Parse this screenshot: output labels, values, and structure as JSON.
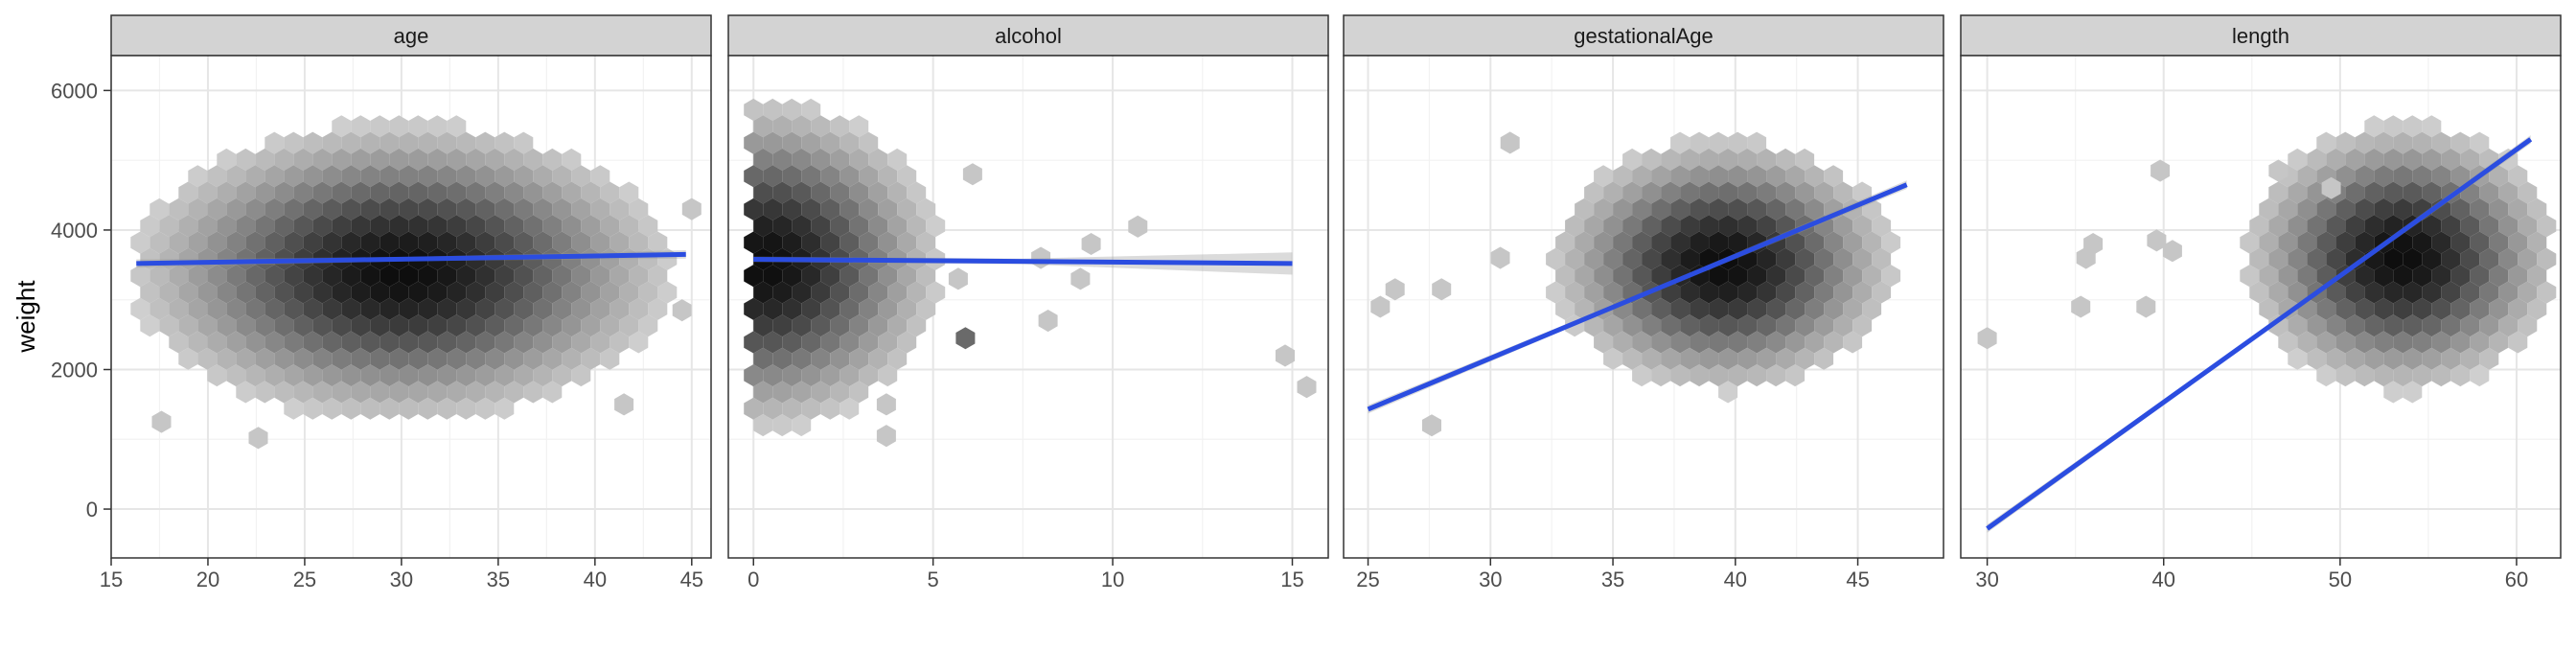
{
  "chart_data": {
    "type": "scatter",
    "style": "faceted hexbin with linear regression fit",
    "ylabel": "weight",
    "ylim": [
      -700,
      6500
    ],
    "y_ticks": [
      0,
      2000,
      4000,
      6000
    ],
    "fit_color": "#2b4de0",
    "hex_color_light": "#cfcfcf",
    "hex_color_dark": "#0d0d0d",
    "facets": [
      {
        "title": "age",
        "xlim": [
          15,
          46
        ],
        "x_ticks": [
          15,
          20,
          25,
          30,
          35,
          40,
          45
        ],
        "fit": {
          "x": [
            16.3,
            44.7
          ],
          "y": [
            3520,
            3650
          ]
        },
        "hex_density": {
          "cx": 30,
          "cy": 3400,
          "sx": 6.5,
          "sy": 1000,
          "x_range": [
            16.5,
            44.8
          ],
          "y_range": [
            800,
            6200
          ]
        },
        "outliers": [
          [
            17.6,
            1250
          ],
          [
            22.6,
            1020
          ],
          [
            41.5,
            1500
          ],
          [
            45,
            4300
          ],
          [
            44.5,
            2850
          ]
        ]
      },
      {
        "title": "alcohol",
        "xlim": [
          -0.7,
          16
        ],
        "x_ticks": [
          0,
          5,
          10,
          15
        ],
        "fit": {
          "x": [
            0,
            15
          ],
          "y": [
            3580,
            3520
          ]
        },
        "hex_density": {
          "cx": 0.3,
          "cy": 3500,
          "sx": 2.3,
          "sy": 1100,
          "x_range": [
            0,
            7
          ],
          "y_range": [
            800,
            6200
          ]
        },
        "outliers": [
          [
            6.1,
            4800
          ],
          [
            10.7,
            4050
          ],
          [
            8.2,
            2700
          ],
          [
            9.4,
            3800
          ],
          [
            9.1,
            3300
          ],
          [
            8,
            3600
          ],
          [
            5.7,
            3300
          ],
          [
            5.9,
            2450
          ],
          [
            14.8,
            2200
          ],
          [
            15.4,
            1750
          ],
          [
            3.7,
            1500
          ],
          [
            3.7,
            1050
          ]
        ]
      },
      {
        "title": "gestationalAge",
        "xlim": [
          24,
          48.5
        ],
        "x_ticks": [
          25,
          30,
          35,
          40,
          45
        ],
        "fit": {
          "x": [
            25,
            47
          ],
          "y": [
            1430,
            4650
          ]
        },
        "hex_density": {
          "cx": 39.5,
          "cy": 3500,
          "sx": 3.3,
          "sy": 850,
          "x_range": [
            26,
            47.5
          ],
          "y_range": [
            800,
            6200
          ]
        },
        "outliers": [
          [
            25.5,
            2900
          ],
          [
            26.1,
            3150
          ],
          [
            28,
            3150
          ],
          [
            30.8,
            5250
          ],
          [
            30.4,
            3600
          ],
          [
            27.6,
            1200
          ]
        ]
      },
      {
        "title": "length",
        "xlim": [
          28.5,
          62.5
        ],
        "x_ticks": [
          30,
          40,
          50,
          60
        ],
        "fit": {
          "x": [
            30,
            60.8
          ],
          "y": [
            -280,
            5300
          ]
        },
        "hex_density": {
          "cx": 53.5,
          "cy": 3600,
          "sx": 4.2,
          "sy": 900,
          "x_range": [
            34,
            62
          ],
          "y_range": [
            800,
            6200
          ]
        },
        "outliers": [
          [
            30,
            2450
          ],
          [
            35.3,
            2900
          ],
          [
            35.6,
            3600
          ],
          [
            36,
            3800
          ],
          [
            39,
            2900
          ],
          [
            39.6,
            3850
          ],
          [
            40.5,
            3700
          ],
          [
            39.8,
            4850
          ],
          [
            46.5,
            4850
          ],
          [
            49.5,
            4600
          ]
        ]
      }
    ]
  }
}
